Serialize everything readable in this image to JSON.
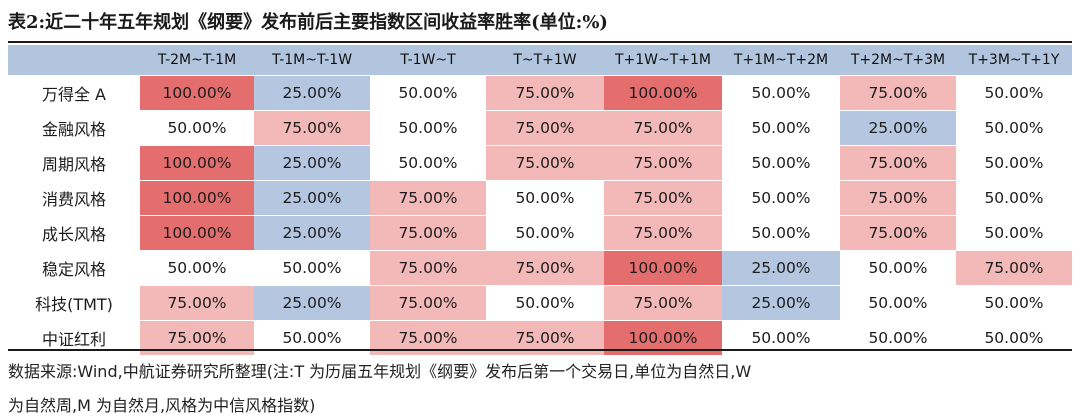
{
  "title": "表2:近二十年五年规划《纲要》发布前后主要指数区间收益率胜率(单位:%)",
  "table": {
    "columns": [
      "T-2M~T-1M",
      "T-1M~T-1W",
      "T-1W~T",
      "T~T+1W",
      "T+1W~T+1M",
      "T+1M~T+2M",
      "T+2M~T+3M",
      "T+3M~T+1Y"
    ],
    "rows": [
      {
        "label": "万得全 A",
        "values": [
          "100.00%",
          "25.00%",
          "50.00%",
          "75.00%",
          "100.00%",
          "50.00%",
          "75.00%",
          "50.00%"
        ]
      },
      {
        "label": "金融风格",
        "values": [
          "50.00%",
          "75.00%",
          "50.00%",
          "75.00%",
          "75.00%",
          "50.00%",
          "25.00%",
          "50.00%"
        ]
      },
      {
        "label": "周期风格",
        "values": [
          "100.00%",
          "25.00%",
          "50.00%",
          "75.00%",
          "75.00%",
          "50.00%",
          "75.00%",
          "50.00%"
        ]
      },
      {
        "label": "消费风格",
        "values": [
          "100.00%",
          "25.00%",
          "75.00%",
          "50.00%",
          "75.00%",
          "50.00%",
          "75.00%",
          "50.00%"
        ]
      },
      {
        "label": "成长风格",
        "values": [
          "100.00%",
          "25.00%",
          "75.00%",
          "50.00%",
          "75.00%",
          "50.00%",
          "75.00%",
          "50.00%"
        ]
      },
      {
        "label": "稳定风格",
        "values": [
          "50.00%",
          "50.00%",
          "75.00%",
          "75.00%",
          "100.00%",
          "25.00%",
          "50.00%",
          "75.00%"
        ]
      },
      {
        "label": "科技(TMT)",
        "values": [
          "75.00%",
          "25.00%",
          "75.00%",
          "50.00%",
          "75.00%",
          "25.00%",
          "50.00%",
          "50.00%"
        ]
      },
      {
        "label": "中证红利",
        "values": [
          "75.00%",
          "50.00%",
          "75.00%",
          "75.00%",
          "100.00%",
          "50.00%",
          "50.00%",
          "50.00%"
        ]
      }
    ]
  },
  "colors": {
    "header_bg": "#b1c5de",
    "cell_100": "#e46e6e",
    "cell_75": "#f2b9b8",
    "cell_50": "#ffffff",
    "cell_25": "#b4c6e0"
  },
  "notes": {
    "line1": "数据来源:Wind,中航证券研究所整理(注:T 为历届五年规划《纲要》发布后第一个交易日,单位为自然日,W",
    "line2": "为自然周,M 为自然月,风格为中信风格指数)"
  }
}
